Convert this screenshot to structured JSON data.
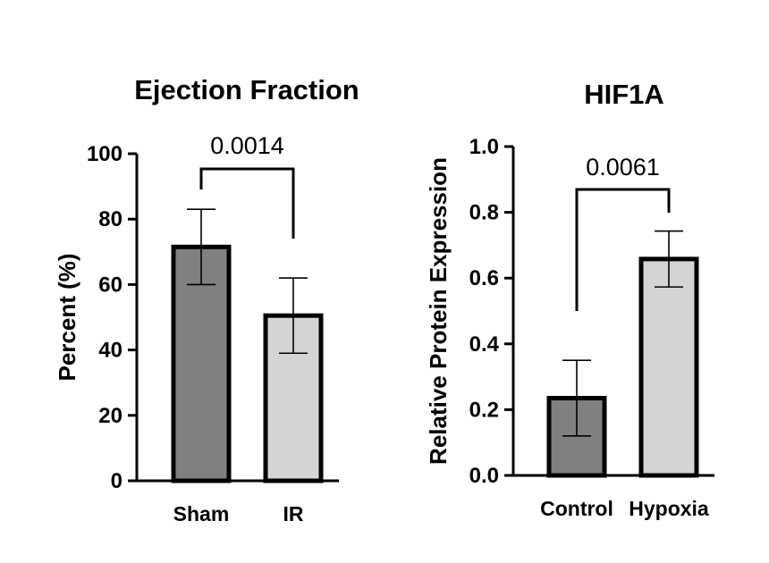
{
  "chart_data": [
    {
      "type": "bar",
      "title": "Ejection Fraction",
      "xlabel": "",
      "ylabel": "Percent (%)",
      "ylim": [
        0,
        100
      ],
      "yticks": [
        "0",
        "20",
        "40",
        "60",
        "80",
        "100"
      ],
      "categories": [
        "Sham",
        "IR"
      ],
      "values": [
        71.5,
        50.5
      ],
      "errors": [
        11.5,
        11.5
      ],
      "colors": [
        "#808080",
        "#d4d4d4"
      ],
      "significance": {
        "label": "0.0014",
        "between": [
          "Sham",
          "IR"
        ]
      }
    },
    {
      "type": "bar",
      "title": "HIF1A",
      "xlabel": "",
      "ylabel": "Relative Protein Expression",
      "ylim": [
        0,
        1.0
      ],
      "yticks": [
        "0.0",
        "0.2",
        "0.4",
        "0.6",
        "0.8",
        "1.0"
      ],
      "categories": [
        "Control",
        "Hypoxia"
      ],
      "values": [
        0.235,
        0.658
      ],
      "errors": [
        0.115,
        0.085
      ],
      "colors": [
        "#808080",
        "#d4d4d4"
      ],
      "significance": {
        "label": "0.0061",
        "between": [
          "Control",
          "Hypoxia"
        ]
      }
    }
  ]
}
